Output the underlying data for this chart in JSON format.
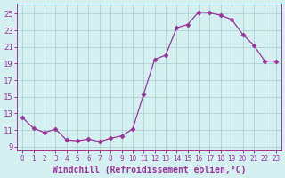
{
  "x": [
    0,
    1,
    2,
    3,
    4,
    5,
    6,
    7,
    8,
    9,
    10,
    11,
    12,
    13,
    14,
    15,
    16,
    17,
    18,
    19,
    20,
    21,
    22,
    23
  ],
  "y": [
    12.5,
    11.2,
    10.7,
    11.1,
    9.8,
    9.7,
    9.9,
    9.6,
    10.0,
    10.3,
    11.1,
    15.3,
    19.5,
    20.0,
    23.3,
    23.7,
    25.2,
    25.1,
    24.8,
    24.3,
    22.5,
    21.2,
    19.3,
    19.3
  ],
  "xlim": [
    -0.5,
    23.5
  ],
  "ylim": [
    8.5,
    26.2
  ],
  "yticks": [
    9,
    11,
    13,
    15,
    17,
    19,
    21,
    23,
    25
  ],
  "xticks": [
    0,
    1,
    2,
    3,
    4,
    5,
    6,
    7,
    8,
    9,
    10,
    11,
    12,
    13,
    14,
    15,
    16,
    17,
    18,
    19,
    20,
    21,
    22,
    23
  ],
  "xlabel": "Windchill (Refroidissement éolien,°C)",
  "line_color": "#993399",
  "marker": "D",
  "marker_size": 2.5,
  "bg_color": "#d4f0f0",
  "grid_color": "#aacccc",
  "tick_color": "#993399",
  "label_color": "#993399",
  "axis_color": "#993399",
  "xlabel_fontsize": 7,
  "xtick_fontsize": 5.5,
  "ytick_fontsize": 6.5
}
